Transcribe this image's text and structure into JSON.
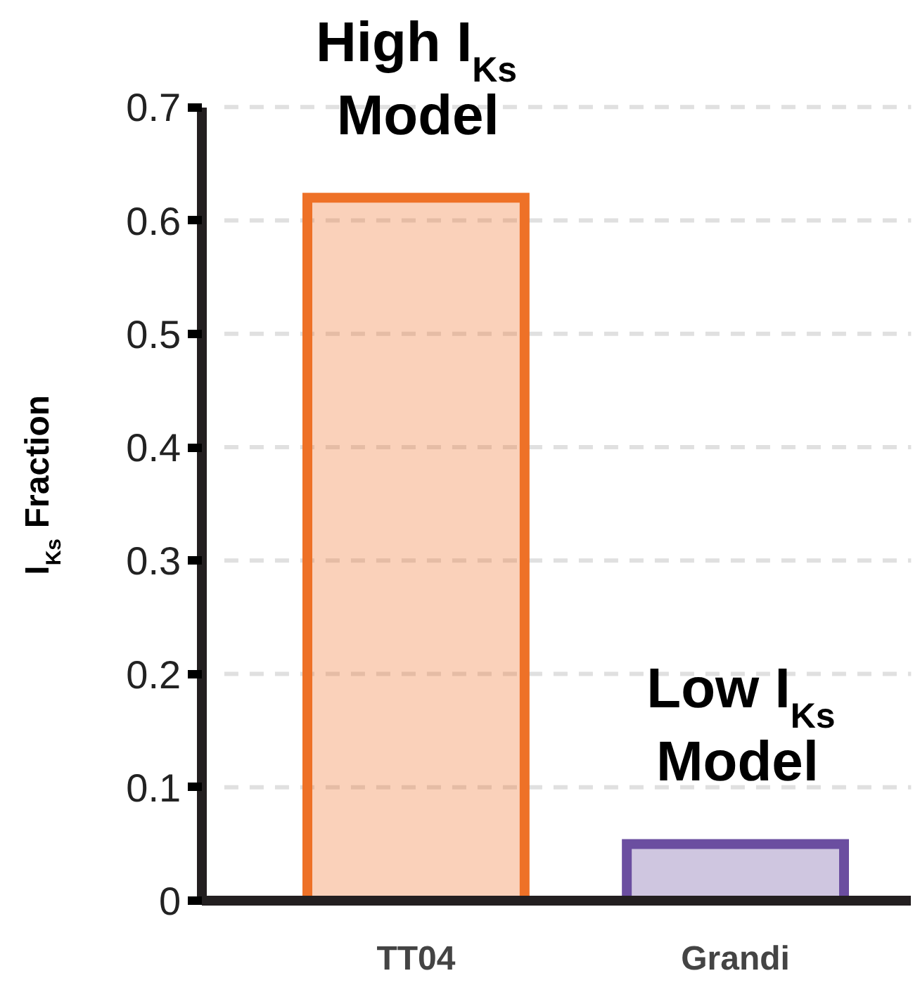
{
  "chart_data": {
    "type": "bar",
    "ylabel": "I$_{Ks}$ Fraction",
    "categories": [
      "TT04",
      "Grandi"
    ],
    "values": [
      0.62,
      0.05
    ],
    "colors": [
      "#ee7127",
      "#6b4ea0"
    ],
    "ylim": [
      0,
      0.7
    ],
    "yticks": [
      0,
      0.1,
      0.2,
      0.3,
      0.4,
      0.5,
      0.6,
      0.7
    ],
    "grid": "y",
    "annotations": [
      {
        "text": "High I$_{Ks}$\nModel",
        "x": "TT04",
        "y": 0.62
      },
      {
        "text": "Low I$_{Ks}$\nModel",
        "x": "Grandi",
        "y": 0.05
      }
    ]
  }
}
